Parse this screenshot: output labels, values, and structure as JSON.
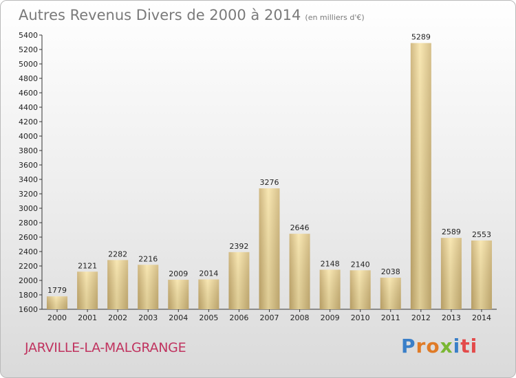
{
  "title": "Autres Revenus Divers de 2000 à 2014",
  "unit": "(en milliers d'€)",
  "commune": "JARVILLE-LA-MALGRANGE",
  "logo": [
    "P",
    "r",
    "o",
    "x",
    "i",
    "ti"
  ],
  "colors": {
    "bar_light": "#f7e3a6",
    "bar_dark": "#c9ad6e",
    "title": "#7a7a7a",
    "commune": "#c0335f"
  },
  "chart_data": {
    "type": "bar",
    "title": "Autres Revenus Divers de 2000 à 2014",
    "xlabel": "",
    "ylabel": "",
    "categories": [
      "2000",
      "2001",
      "2002",
      "2003",
      "2004",
      "2005",
      "2006",
      "2007",
      "2008",
      "2009",
      "2010",
      "2011",
      "2012",
      "2013",
      "2014"
    ],
    "values": [
      1779,
      2121,
      2282,
      2216,
      2009,
      2014,
      2392,
      3276,
      2646,
      2148,
      2140,
      2038,
      5289,
      2589,
      2553
    ],
    "ylim": [
      1600,
      5400
    ],
    "ytick_step": 200,
    "grid": false,
    "data_labels": true
  }
}
